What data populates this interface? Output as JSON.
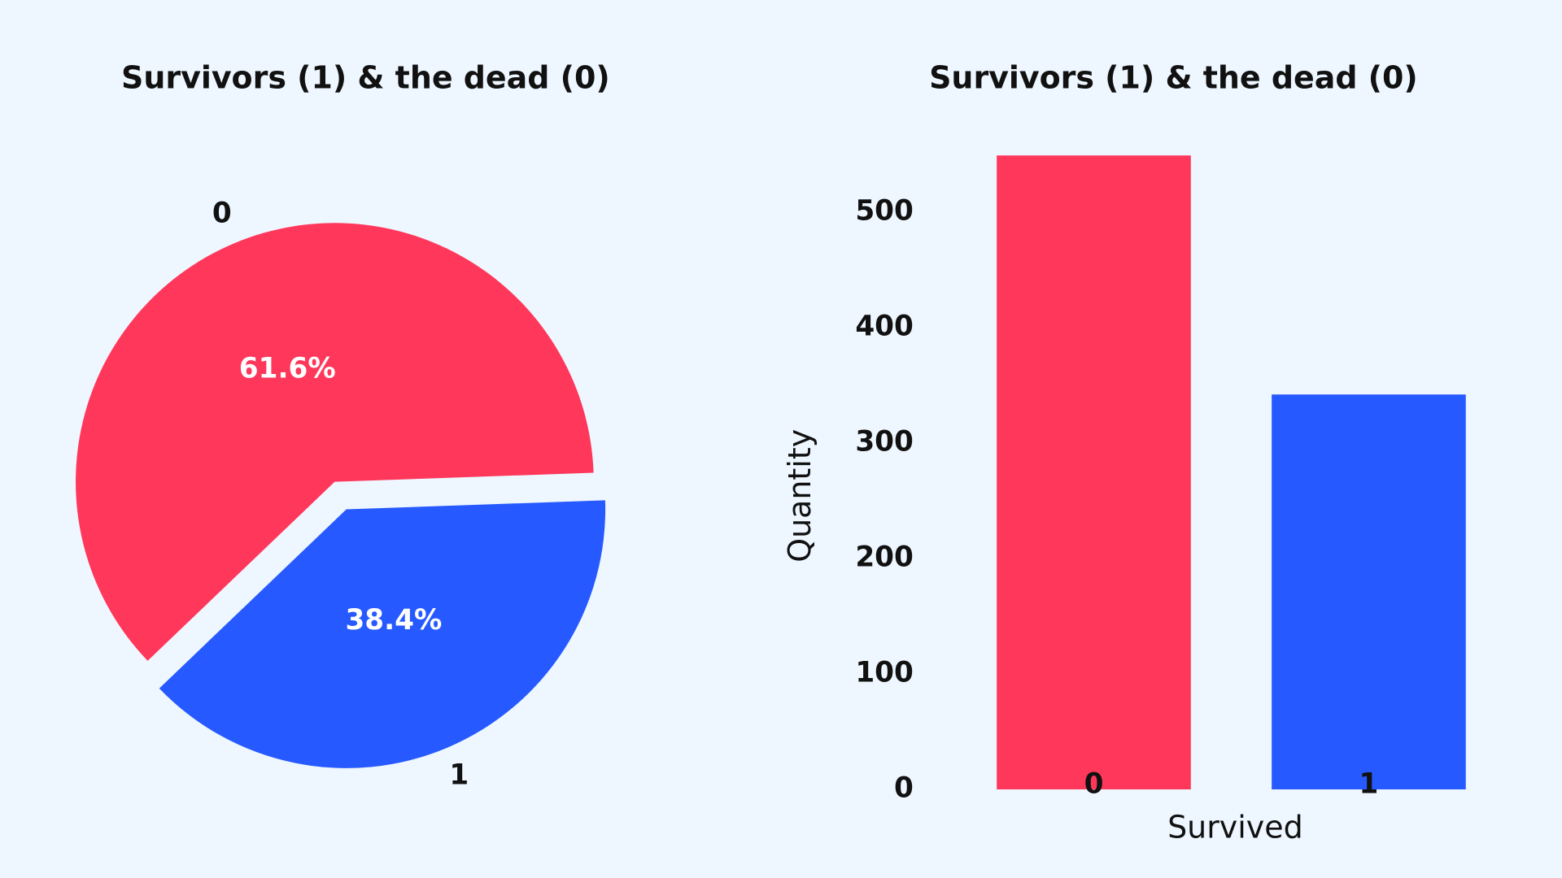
{
  "chart_data": [
    {
      "type": "pie",
      "title": "Survivors (1) & the dead (0)",
      "categories": [
        "0",
        "1"
      ],
      "values": [
        61.6,
        38.4
      ],
      "value_labels": [
        "61.6%",
        "38.4%"
      ],
      "colors": [
        "#ff375b",
        "#2659ff"
      ]
    },
    {
      "type": "bar",
      "title": "Survivors (1) & the dead (0)",
      "xlabel": "Survived",
      "ylabel": "Quantity",
      "categories": [
        "0",
        "1"
      ],
      "values": [
        549,
        342
      ],
      "colors": [
        "#ff375b",
        "#2659ff"
      ],
      "ylim": [
        0,
        560
      ],
      "yticks": [
        0,
        100,
        200,
        300,
        400,
        500
      ]
    }
  ]
}
